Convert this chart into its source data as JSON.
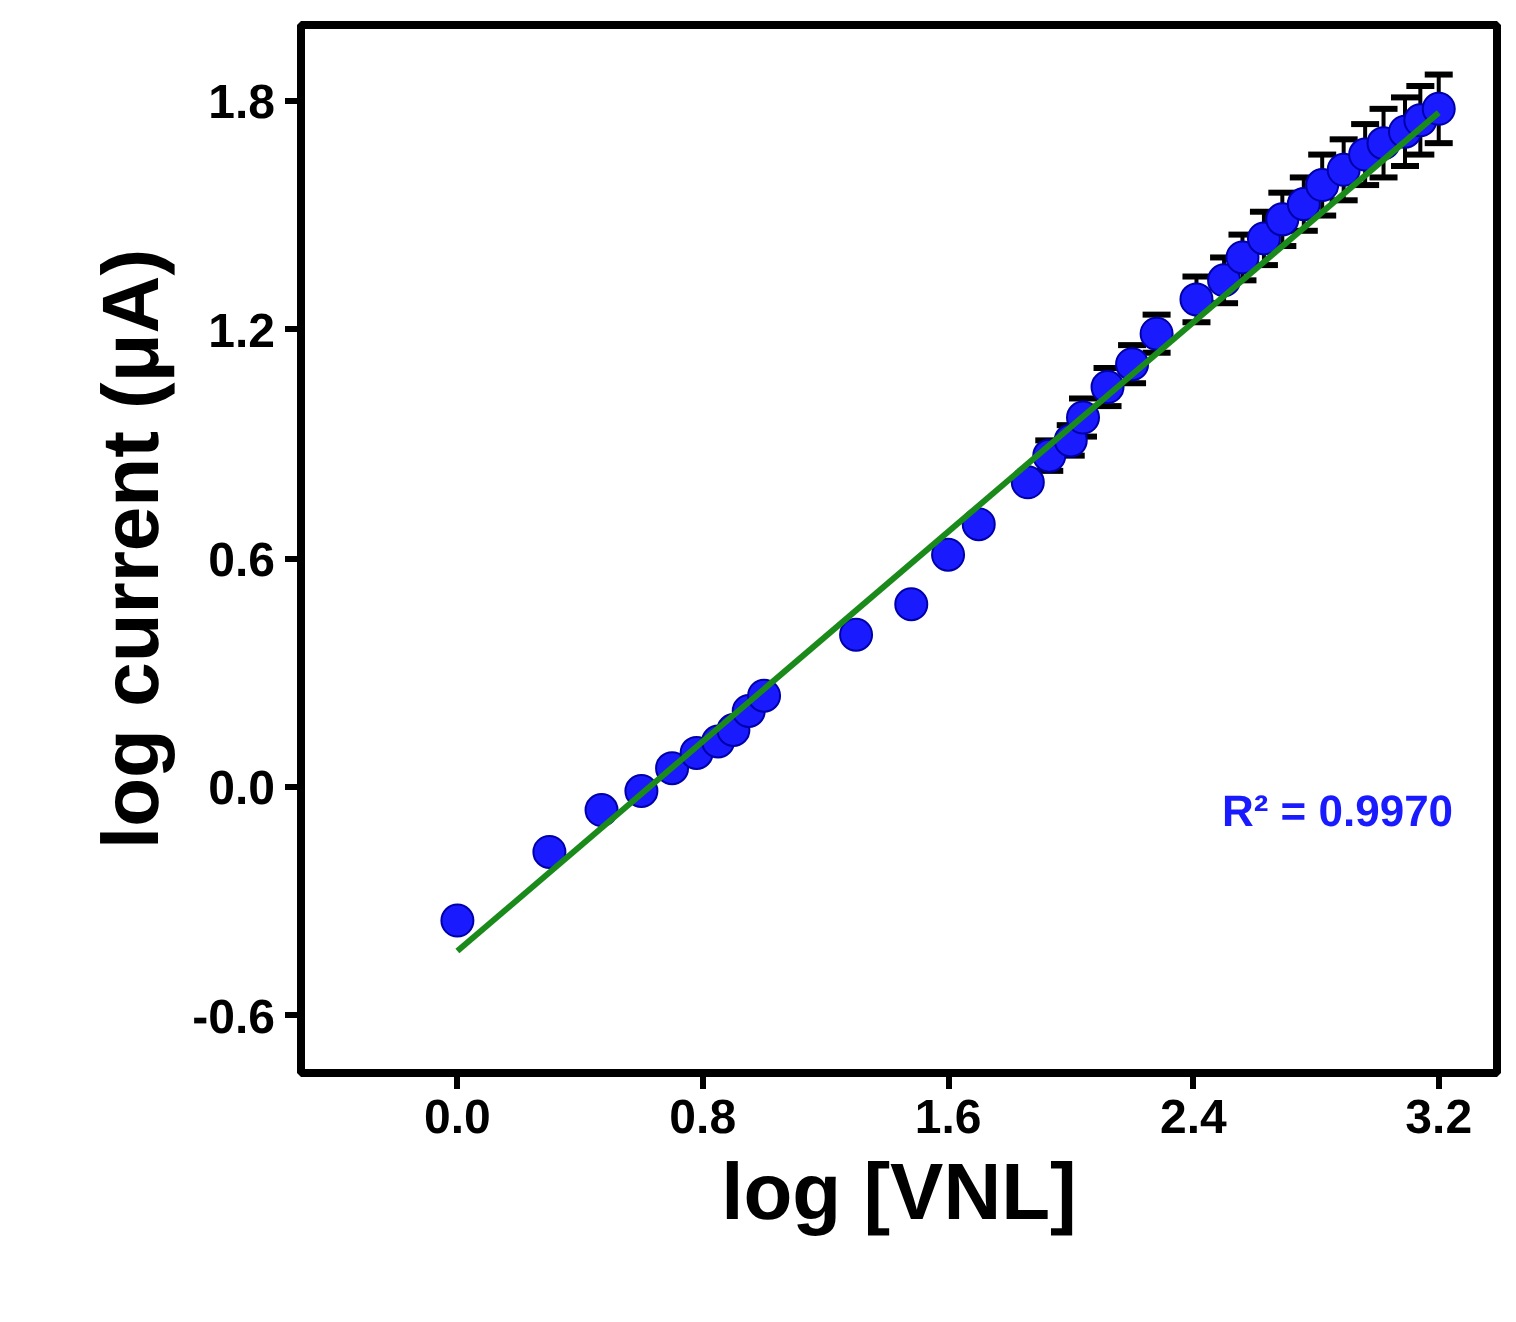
{
  "chart_data": {
    "type": "scatter",
    "xlabel": "log [VNL]",
    "ylabel": "log current (μA)",
    "xlim": [
      -0.51,
      3.39
    ],
    "ylim": [
      -0.75,
      2.0
    ],
    "xticks": [
      {
        "value": 0,
        "label": "0.0"
      },
      {
        "value": 0.8,
        "label": "0.8"
      },
      {
        "value": 1.6,
        "label": "1.6"
      },
      {
        "value": 2.4,
        "label": "2.4"
      },
      {
        "value": 3.2,
        "label": "3.2"
      }
    ],
    "yticks": [
      {
        "value": -0.6,
        "label": "-0.6"
      },
      {
        "value": 0,
        "label": "0.0"
      },
      {
        "value": 0.6,
        "label": "0.6"
      },
      {
        "value": 1.2,
        "label": "1.2"
      },
      {
        "value": 1.8,
        "label": "1.8"
      }
    ],
    "grid": false,
    "annotations": [
      "R² = 0.9970"
    ],
    "series": [
      {
        "color": "#1a1aff",
        "marker": "circle",
        "x": [
          0,
          0.3,
          0.47,
          0.6,
          0.7,
          0.78,
          0.85,
          0.9,
          0.95,
          1.0,
          1.3,
          1.48,
          1.6,
          1.7,
          1.86,
          1.93,
          2.0,
          2.04,
          2.12,
          2.2,
          2.28,
          2.41,
          2.5,
          2.56,
          2.63,
          2.69,
          2.76,
          2.82,
          2.89,
          2.96,
          3.02,
          3.09,
          3.14,
          3.2
        ],
        "values": [
          -0.35,
          -0.17,
          -0.06,
          -0.01,
          0.05,
          0.09,
          0.12,
          0.15,
          0.2,
          0.24,
          0.4,
          0.48,
          0.61,
          0.69,
          0.8,
          0.87,
          0.91,
          0.97,
          1.05,
          1.11,
          1.19,
          1.28,
          1.33,
          1.39,
          1.44,
          1.49,
          1.53,
          1.58,
          1.62,
          1.66,
          1.69,
          1.72,
          1.75,
          1.78
        ],
        "errors": [
          null,
          null,
          null,
          null,
          null,
          null,
          null,
          null,
          null,
          null,
          null,
          null,
          null,
          null,
          null,
          0.04,
          0.04,
          0.05,
          0.05,
          0.05,
          0.05,
          0.06,
          0.06,
          0.06,
          0.07,
          0.07,
          0.07,
          0.08,
          0.08,
          0.08,
          0.09,
          0.09,
          0.09,
          0.09
        ]
      },
      {
        "type": "line",
        "color": "#1a8a1a",
        "marker": "none",
        "x": [
          0,
          3.2
        ],
        "values": [
          -0.43,
          1.77
        ]
      }
    ]
  }
}
